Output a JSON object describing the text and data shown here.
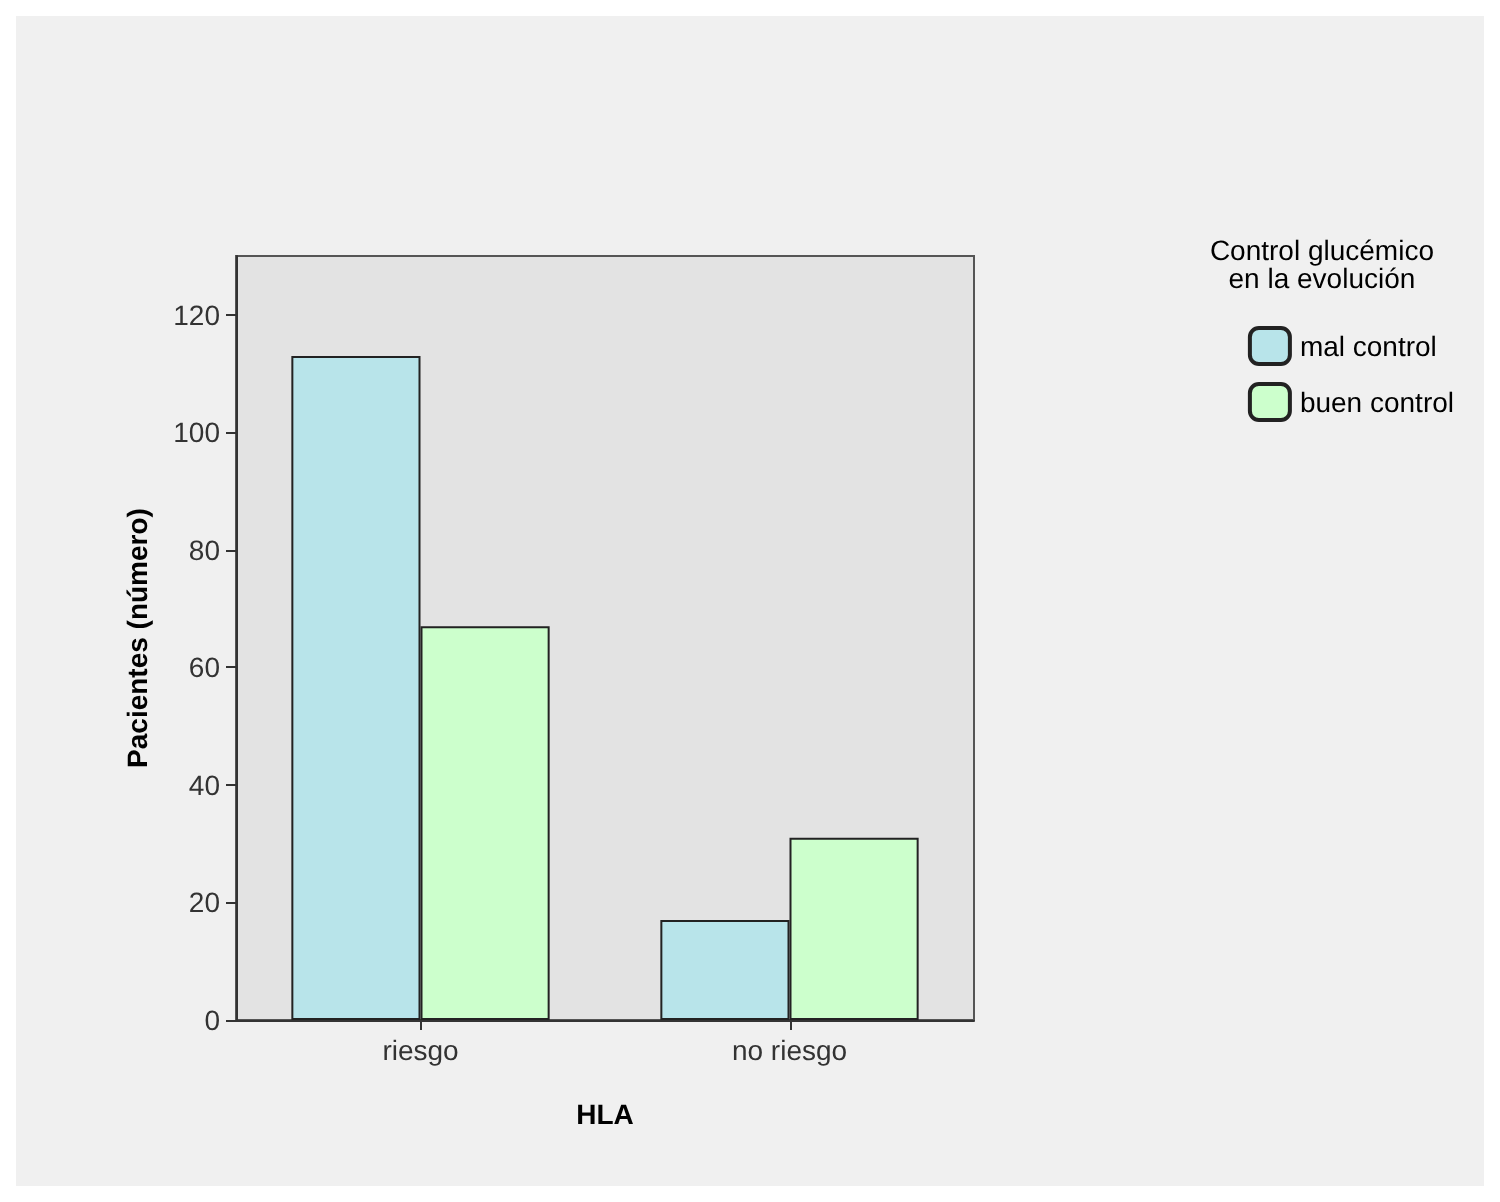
{
  "chart_data": {
    "type": "bar",
    "xlabel": "HLA",
    "ylabel": "Pacientes (número)",
    "legend_title": "Control glucémico\nen la evolución",
    "categories": [
      "riesgo",
      "no riesgo"
    ],
    "series": [
      {
        "name": "mal control",
        "color": "#b8e4ea",
        "values": [
          113,
          17
        ]
      },
      {
        "name": "buen control",
        "color": "#ccffcc",
        "values": [
          67,
          31
        ]
      }
    ],
    "ylim": [
      0,
      130
    ],
    "yticks": [
      0,
      20,
      40,
      60,
      80,
      100,
      120
    ],
    "grid": false,
    "legend": "top right"
  }
}
